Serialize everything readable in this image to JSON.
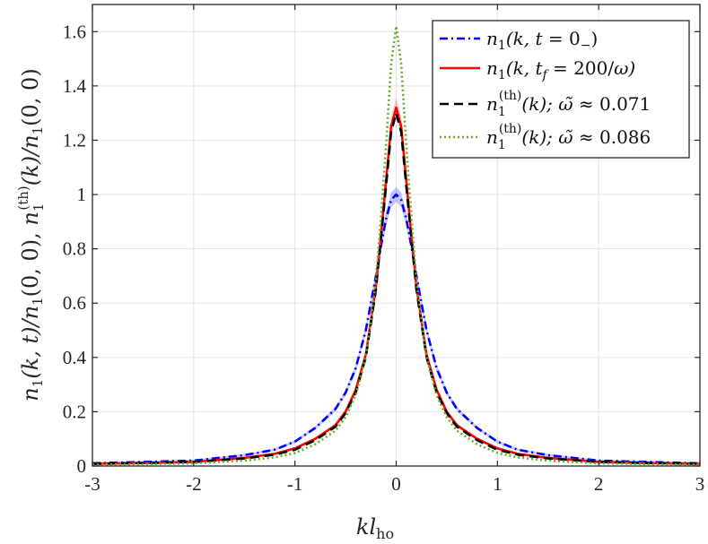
{
  "chart_data": {
    "type": "line",
    "xlabel": "kl_ho",
    "ylabel": "n1(k,t)/n1(0,0),  n1^(th)(k)/n1(0,0)",
    "xlim": [
      -3,
      3
    ],
    "ylim": [
      0,
      1.7
    ],
    "xticks": [
      -3,
      -2,
      -1,
      0,
      1,
      2,
      3
    ],
    "xtick_labels": [
      "-3",
      "-2",
      "-1",
      "0",
      "1",
      "2",
      "3"
    ],
    "yticks": [
      0,
      0.2,
      0.4,
      0.6,
      0.8,
      1,
      1.2,
      1.4,
      1.6
    ],
    "ytick_labels": [
      "0",
      "0.2",
      "0.4",
      "0.6",
      "0.8",
      "1",
      "1.2",
      "1.4",
      "1.6"
    ],
    "grid": true,
    "legend_position": "top-right",
    "x": [
      -3,
      -2.5,
      -2,
      -1.5,
      -1.2,
      -1,
      -0.8,
      -0.6,
      -0.5,
      -0.4,
      -0.3,
      -0.2,
      -0.15,
      -0.1,
      -0.05,
      0,
      0.05,
      0.1,
      0.15,
      0.2,
      0.3,
      0.4,
      0.5,
      0.6,
      0.8,
      1,
      1.2,
      1.5,
      2,
      2.5,
      3
    ],
    "series": [
      {
        "name": "n1(k, t = 0−)",
        "color": "#0000ff",
        "dash": "dashdot",
        "band": true,
        "values": [
          0.01,
          0.015,
          0.02,
          0.04,
          0.06,
          0.09,
          0.14,
          0.21,
          0.27,
          0.36,
          0.5,
          0.7,
          0.81,
          0.91,
          0.98,
          1.0,
          0.98,
          0.91,
          0.81,
          0.7,
          0.5,
          0.36,
          0.27,
          0.21,
          0.14,
          0.09,
          0.06,
          0.04,
          0.02,
          0.015,
          0.01
        ]
      },
      {
        "name": "n1(k, t_f = 200/ω)",
        "color": "#ff0000",
        "dash": "solid",
        "band": true,
        "values": [
          0.008,
          0.011,
          0.015,
          0.03,
          0.045,
          0.065,
          0.1,
          0.15,
          0.2,
          0.28,
          0.41,
          0.66,
          0.85,
          1.05,
          1.25,
          1.32,
          1.25,
          1.05,
          0.85,
          0.66,
          0.41,
          0.28,
          0.2,
          0.15,
          0.1,
          0.065,
          0.045,
          0.03,
          0.015,
          0.011,
          0.008
        ]
      },
      {
        "name": "n1^(th)(k); ω̃ ≈ 0.071",
        "color": "#000000",
        "dash": "dashed",
        "band": false,
        "values": [
          0.008,
          0.011,
          0.015,
          0.028,
          0.042,
          0.06,
          0.095,
          0.145,
          0.195,
          0.27,
          0.4,
          0.65,
          0.84,
          1.03,
          1.23,
          1.3,
          1.23,
          1.03,
          0.84,
          0.65,
          0.4,
          0.27,
          0.195,
          0.145,
          0.095,
          0.06,
          0.042,
          0.028,
          0.015,
          0.011,
          0.008
        ]
      },
      {
        "name": "n1^(th)(k); ω̃ ≈ 0.086",
        "color": "#6aaa2a",
        "dash": "dotted",
        "band": false,
        "values": [
          0.005,
          0.007,
          0.01,
          0.02,
          0.032,
          0.048,
          0.08,
          0.13,
          0.18,
          0.26,
          0.4,
          0.68,
          0.92,
          1.18,
          1.48,
          1.62,
          1.48,
          1.18,
          0.92,
          0.68,
          0.4,
          0.26,
          0.18,
          0.13,
          0.08,
          0.048,
          0.032,
          0.02,
          0.01,
          0.007,
          0.005
        ]
      }
    ]
  }
}
